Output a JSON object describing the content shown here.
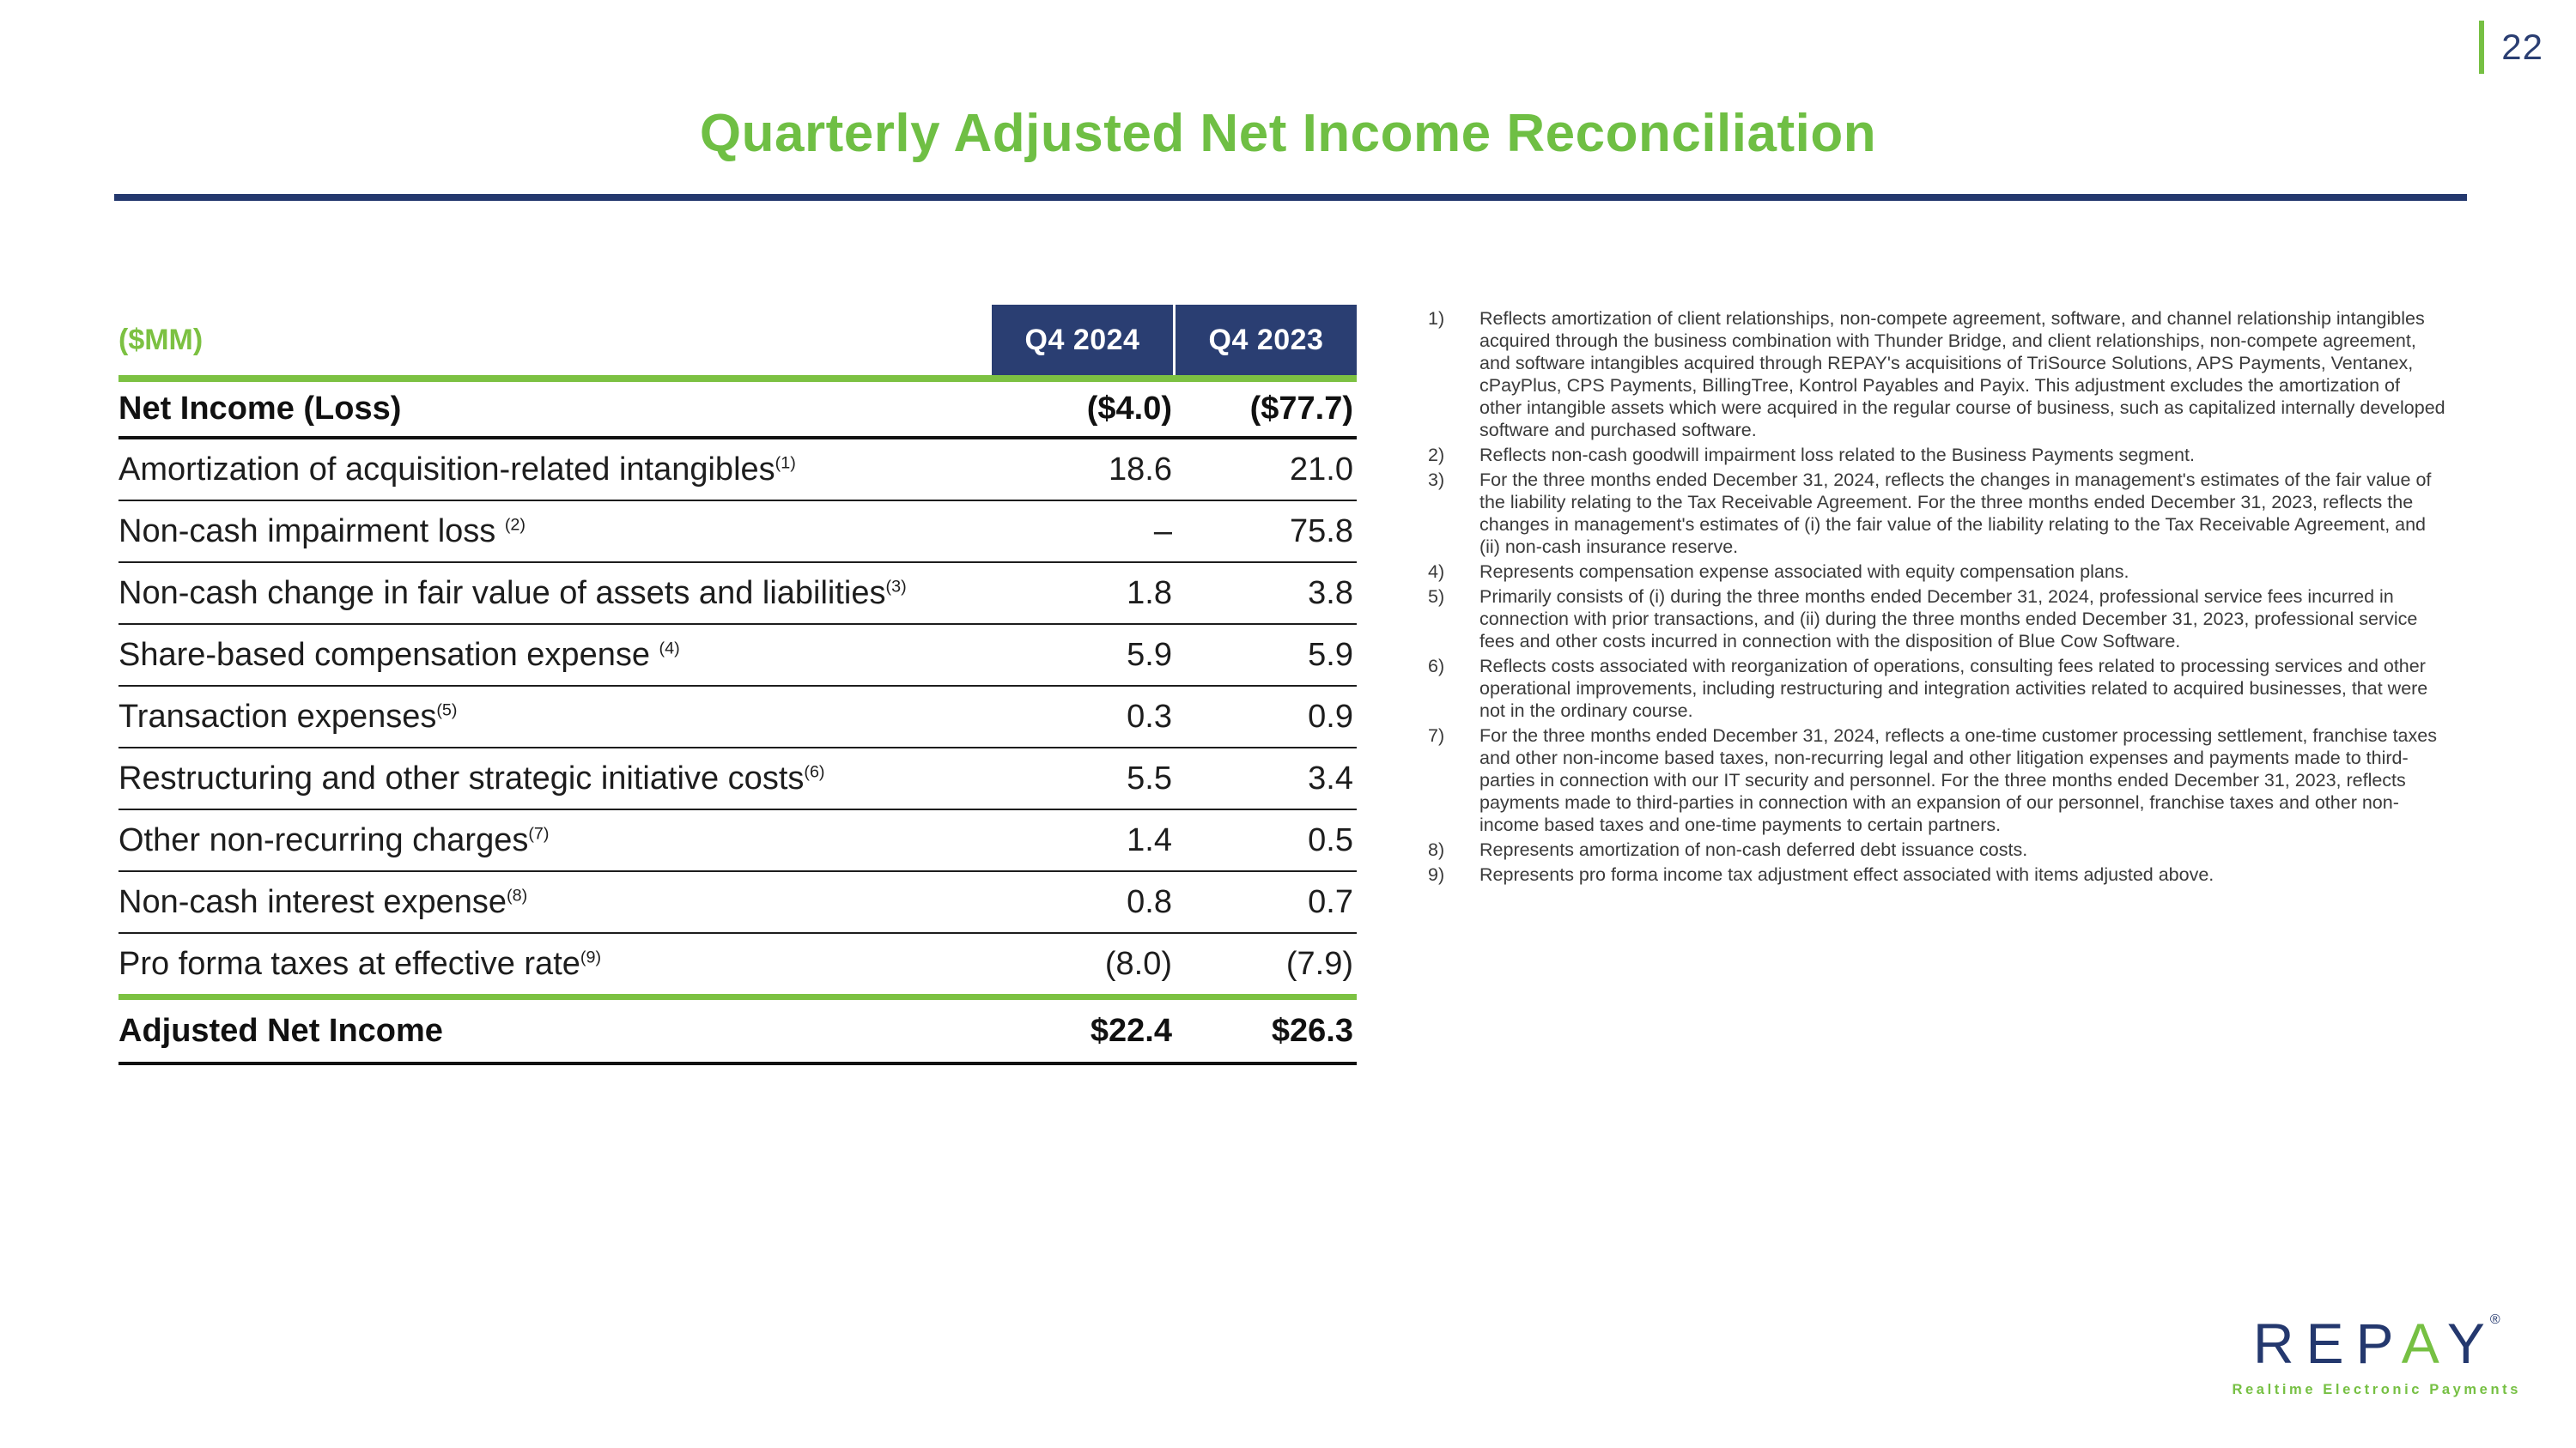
{
  "page": {
    "number": "22"
  },
  "title": "Quarterly Adjusted Net Income Reconciliation",
  "colors": {
    "green": "#76c043",
    "navy": "#2a3e72"
  },
  "table": {
    "unit_label": "($MM)",
    "columns": {
      "col1": "Q4 2024",
      "col2": "Q4 2023"
    },
    "net_income_row": {
      "label": "Net Income (Loss)",
      "q4_2024": "($4.0)",
      "q4_2023": "($77.7)"
    },
    "rows": [
      {
        "label": "Amortization of acquisition-related intangibles",
        "sup": "(1)",
        "q4_2024": "18.6",
        "q4_2023": "21.0"
      },
      {
        "label": "Non-cash impairment loss ",
        "sup": "(2)",
        "q4_2024": "–",
        "q4_2023": "75.8"
      },
      {
        "label": "Non-cash change in fair value of assets and liabilities",
        "sup": "(3)",
        "q4_2024": "1.8",
        "q4_2023": "3.8"
      },
      {
        "label": "Share-based compensation expense ",
        "sup": "(4)",
        "q4_2024": "5.9",
        "q4_2023": "5.9"
      },
      {
        "label": "Transaction expenses",
        "sup": "(5)",
        "q4_2024": "0.3",
        "q4_2023": "0.9"
      },
      {
        "label": "Restructuring and other strategic initiative costs",
        "sup": "(6)",
        "q4_2024": "5.5",
        "q4_2023": "3.4"
      },
      {
        "label": "Other non-recurring charges",
        "sup": "(7)",
        "q4_2024": "1.4",
        "q4_2023": "0.5"
      },
      {
        "label": "Non-cash interest expense",
        "sup": "(8)",
        "q4_2024": "0.8",
        "q4_2023": "0.7"
      },
      {
        "label": "Pro forma taxes at effective rate",
        "sup": "(9)",
        "q4_2024": "(8.0)",
        "q4_2023": "(7.9)"
      }
    ],
    "total_row": {
      "label": "Adjusted Net Income",
      "q4_2024": "$22.4",
      "q4_2023": "$26.3"
    }
  },
  "footnotes": [
    {
      "num": "1)",
      "text": "Reflects amortization of client relationships, non-compete agreement, software, and channel relationship intangibles acquired through the business combination with Thunder Bridge, and client relationships, non-compete agreement, and software intangibles acquired through REPAY's acquisitions of TriSource Solutions, APS Payments, Ventanex, cPayPlus, CPS Payments, BillingTree, Kontrol Payables and Payix. This adjustment excludes the amortization of other intangible assets which were acquired in the regular course of business, such as capitalized internally developed software and purchased software."
    },
    {
      "num": "2)",
      "text": "Reflects non-cash goodwill impairment loss related to the Business Payments segment."
    },
    {
      "num": "3)",
      "text": "For the three months ended December 31, 2024, reflects the changes in management's estimates of the fair value of the liability relating to the Tax Receivable Agreement. For the three months ended December 31, 2023, reflects the changes in management's estimates of (i) the fair value of the liability relating to the Tax Receivable Agreement, and (ii) non-cash insurance reserve."
    },
    {
      "num": "4)",
      "text": "Represents compensation expense associated with equity compensation plans."
    },
    {
      "num": "5)",
      "text": "Primarily consists of (i) during the three months ended December 31, 2024, professional service fees incurred in connection with prior transactions, and (ii) during the three months ended December 31, 2023, professional service fees and other costs incurred in connection with the disposition of Blue Cow Software."
    },
    {
      "num": "6)",
      "text": "Reflects costs associated with reorganization of operations, consulting fees related to processing services and other operational improvements, including restructuring and integration activities related to acquired businesses, that were not in the ordinary course."
    },
    {
      "num": "7)",
      "text": "For the three months ended December 31, 2024, reflects a one-time customer processing settlement, franchise taxes and other non-income based taxes, non-recurring legal and other litigation expenses and payments made to third-parties in connection with our IT security and personnel. For the three months ended December 31, 2023, reflects payments made to third-parties in connection with an expansion of our personnel, franchise taxes and other non-income based taxes and one-time payments to certain partners."
    },
    {
      "num": "8)",
      "text": "Represents amortization of non-cash deferred debt issuance costs."
    },
    {
      "num": "9)",
      "text": "Represents pro forma income tax adjustment effect associated with items adjusted above."
    }
  ],
  "logo": {
    "part1": "REP",
    "part2": "A",
    "part3": "Y",
    "registered": "®",
    "tagline": "Realtime Electronic Payments"
  }
}
